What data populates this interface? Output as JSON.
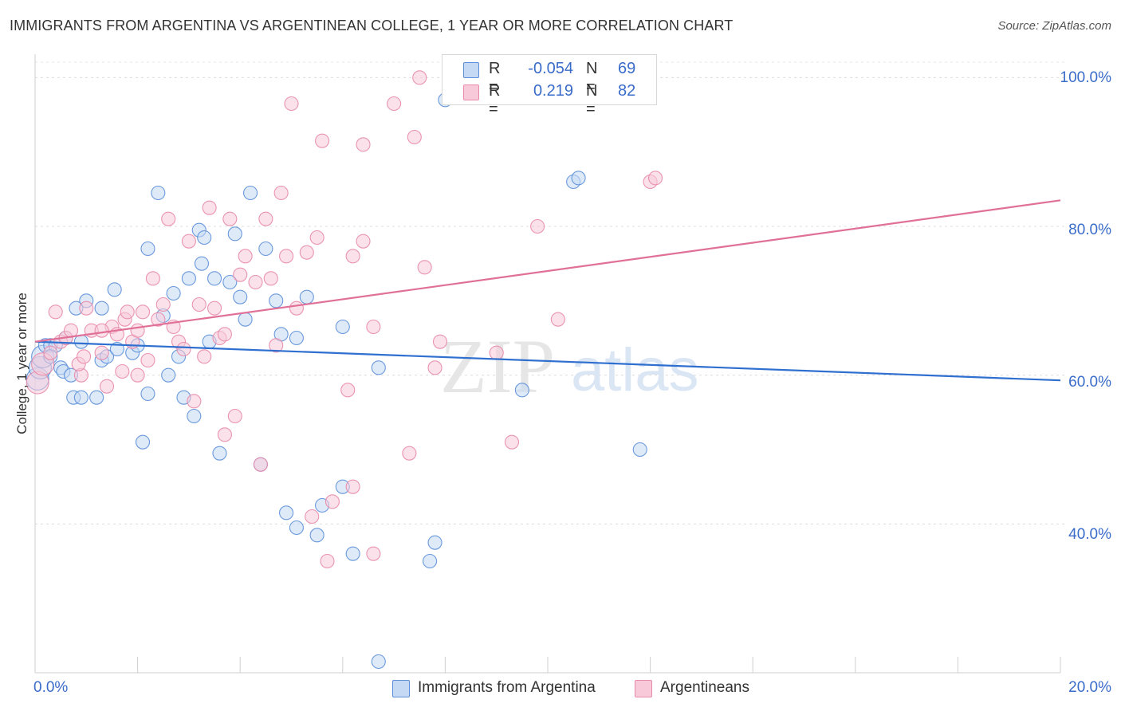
{
  "title": "IMMIGRANTS FROM ARGENTINA VS ARGENTINEAN COLLEGE, 1 YEAR OR MORE CORRELATION CHART",
  "source": "Source: ZipAtlas.com",
  "watermark": {
    "zip": "ZIP",
    "atlas": "atlas"
  },
  "stats": [
    {
      "r_label": "R =",
      "r_value": "-0.054",
      "n_label": "N =",
      "n_value": "69",
      "color": "#5b8fd9",
      "fill": "#c5d8f4"
    },
    {
      "r_label": "R =",
      "r_value": "0.219",
      "n_label": "N =",
      "n_value": "82",
      "color": "#e88aa8",
      "fill": "#f8cad9"
    }
  ],
  "chart_data": {
    "type": "scatter",
    "xlabel": "",
    "ylabel": "College, 1 year or more",
    "xlim": [
      0,
      20
    ],
    "ylim": [
      20,
      104
    ],
    "x_tick_labels": [
      "0.0%",
      "20.0%"
    ],
    "y_ticks": [
      40,
      60,
      80,
      100
    ],
    "y_tick_labels": [
      "40.0%",
      "60.0%",
      "80.0%",
      "100.0%"
    ],
    "grid": true,
    "legend_position": "bottom-center",
    "series": [
      {
        "name": "Immigrants from Argentina",
        "color": "#5b8fd9",
        "fill": "#c5d8f4",
        "trend": {
          "x": [
            0,
            20
          ],
          "y": [
            64.5,
            59.3
          ]
        },
        "points": [
          [
            0.05,
            59.5
          ],
          [
            0.1,
            61
          ],
          [
            0.15,
            62.5
          ],
          [
            0.2,
            64
          ],
          [
            0.3,
            64
          ],
          [
            0.4,
            64
          ],
          [
            0.6,
            65
          ],
          [
            0.3,
            62.5
          ],
          [
            0.5,
            61
          ],
          [
            0.55,
            60.5
          ],
          [
            0.7,
            60
          ],
          [
            0.75,
            57
          ],
          [
            0.9,
            57
          ],
          [
            1.2,
            57
          ],
          [
            1.3,
            62
          ],
          [
            1.4,
            62.5
          ],
          [
            1.0,
            70
          ],
          [
            1.3,
            69
          ],
          [
            1.55,
            71.5
          ],
          [
            0.8,
            69
          ],
          [
            1.9,
            63
          ],
          [
            2.0,
            64
          ],
          [
            2.2,
            57.5
          ],
          [
            2.1,
            51
          ],
          [
            2.2,
            77
          ],
          [
            2.4,
            84.5
          ],
          [
            2.5,
            68
          ],
          [
            2.6,
            60
          ],
          [
            2.8,
            62.5
          ],
          [
            2.7,
            71
          ],
          [
            2.9,
            57
          ],
          [
            3.0,
            73
          ],
          [
            3.1,
            54.5
          ],
          [
            3.2,
            79.5
          ],
          [
            3.25,
            75
          ],
          [
            3.3,
            78.5
          ],
          [
            3.4,
            64.5
          ],
          [
            3.5,
            73
          ],
          [
            3.6,
            49.5
          ],
          [
            3.8,
            72.5
          ],
          [
            3.9,
            79
          ],
          [
            4.0,
            70.5
          ],
          [
            4.1,
            67.5
          ],
          [
            4.2,
            84.5
          ],
          [
            4.4,
            48
          ],
          [
            4.5,
            77
          ],
          [
            4.7,
            70
          ],
          [
            4.8,
            65.5
          ],
          [
            4.9,
            41.5
          ],
          [
            5.1,
            65
          ],
          [
            5.3,
            70.5
          ],
          [
            5.1,
            39.5
          ],
          [
            5.5,
            38.5
          ],
          [
            5.6,
            42.5
          ],
          [
            6.0,
            66.5
          ],
          [
            6.0,
            45
          ],
          [
            6.2,
            36
          ],
          [
            6.7,
            61
          ],
          [
            6.7,
            21.5
          ],
          [
            7.7,
            35
          ],
          [
            7.8,
            37.5
          ],
          [
            8.0,
            97
          ],
          [
            8.8,
            100
          ],
          [
            9.5,
            58
          ],
          [
            10.5,
            86
          ],
          [
            10.6,
            86.5
          ],
          [
            11.8,
            50
          ],
          [
            0.9,
            64.5
          ],
          [
            1.6,
            63.5
          ]
        ]
      },
      {
        "name": "Argentineans",
        "color": "#e88aa8",
        "fill": "#f8cad9",
        "trend": {
          "x": [
            0,
            20
          ],
          "y": [
            64.5,
            83.5
          ]
        },
        "points": [
          [
            0.05,
            59
          ],
          [
            0.15,
            61.5
          ],
          [
            0.3,
            63
          ],
          [
            0.5,
            64.5
          ],
          [
            0.6,
            65
          ],
          [
            0.7,
            66
          ],
          [
            0.9,
            60
          ],
          [
            0.85,
            61.5
          ],
          [
            0.95,
            62.5
          ],
          [
            1.1,
            66
          ],
          [
            1.3,
            63
          ],
          [
            1.4,
            58.5
          ],
          [
            1.5,
            66.5
          ],
          [
            1.6,
            65.5
          ],
          [
            1.7,
            60.5
          ],
          [
            1.75,
            67.5
          ],
          [
            1.8,
            68.5
          ],
          [
            1.9,
            64.5
          ],
          [
            2.0,
            66
          ],
          [
            2.1,
            68.5
          ],
          [
            2.2,
            62
          ],
          [
            2.3,
            73
          ],
          [
            2.4,
            67.5
          ],
          [
            2.5,
            69.5
          ],
          [
            2.6,
            81
          ],
          [
            2.7,
            66.5
          ],
          [
            2.8,
            64.5
          ],
          [
            2.9,
            63.5
          ],
          [
            3.0,
            78
          ],
          [
            3.1,
            56.5
          ],
          [
            3.2,
            69.5
          ],
          [
            3.3,
            62.5
          ],
          [
            3.4,
            82.5
          ],
          [
            3.5,
            69
          ],
          [
            3.6,
            65
          ],
          [
            3.7,
            52
          ],
          [
            3.8,
            81
          ],
          [
            3.9,
            54.5
          ],
          [
            4.0,
            73.5
          ],
          [
            4.1,
            76
          ],
          [
            4.3,
            72.5
          ],
          [
            4.4,
            48
          ],
          [
            4.5,
            81
          ],
          [
            4.6,
            73
          ],
          [
            4.7,
            64
          ],
          [
            4.8,
            84.5
          ],
          [
            4.9,
            76
          ],
          [
            5.0,
            96.5
          ],
          [
            5.1,
            69
          ],
          [
            5.3,
            76.5
          ],
          [
            5.5,
            78.5
          ],
          [
            5.6,
            91.5
          ],
          [
            5.7,
            35
          ],
          [
            5.8,
            43
          ],
          [
            6.1,
            58
          ],
          [
            6.2,
            76
          ],
          [
            6.4,
            91
          ],
          [
            6.4,
            78
          ],
          [
            6.6,
            66.5
          ],
          [
            6.6,
            36
          ],
          [
            7.0,
            96.5
          ],
          [
            7.3,
            49.5
          ],
          [
            7.4,
            92
          ],
          [
            7.5,
            100
          ],
          [
            7.6,
            74.5
          ],
          [
            7.8,
            61
          ],
          [
            7.9,
            64.5
          ],
          [
            8.6,
            100
          ],
          [
            9.0,
            63
          ],
          [
            9.3,
            51
          ],
          [
            9.5,
            100
          ],
          [
            9.8,
            80
          ],
          [
            10.2,
            67.5
          ],
          [
            12.0,
            86
          ],
          [
            12.1,
            86.5
          ],
          [
            6.2,
            45
          ],
          [
            5.4,
            41
          ],
          [
            0.4,
            68.5
          ],
          [
            1.0,
            69
          ],
          [
            1.3,
            66
          ],
          [
            2.0,
            60
          ],
          [
            3.7,
            65.5
          ]
        ]
      }
    ]
  }
}
